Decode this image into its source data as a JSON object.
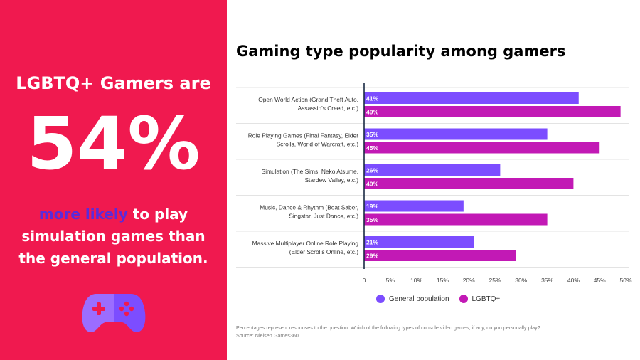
{
  "left": {
    "headline": "LGBTQ+ Gamers are",
    "stat": "54%",
    "highlight": "more likely",
    "line1_rest": " to play",
    "line2": "simulation games than",
    "line3": "the general population.",
    "icon": "game-controller-icon"
  },
  "colors": {
    "panel": "#f0194f",
    "general": "#7c4dff",
    "lgbtq": "#c219b5"
  },
  "chart_data": {
    "type": "bar",
    "orientation": "horizontal",
    "title": "Gaming type popularity among gamers",
    "categories": [
      [
        "Open World Action (Grand Theft Auto,",
        "Assassin's Creed, etc.)"
      ],
      [
        "Role Playing Games (Final Fantasy, Elder",
        "Scrolls, World of Warcraft, etc.)"
      ],
      [
        "Simulation (The Sims, Neko Atsume,",
        "Stardew Valley, etc.)"
      ],
      [
        "Music, Dance & Rhythm (Beat Saber,",
        "Singstar, Just Dance, etc.)"
      ],
      [
        "Massive Multiplayer Online Role Playing",
        "(Elder Scrolls Online, etc.)"
      ]
    ],
    "series": [
      {
        "name": "General population",
        "values": [
          41,
          35,
          26,
          19,
          21
        ],
        "labels": [
          "41%",
          "35%",
          "26%",
          "19%",
          "21%"
        ]
      },
      {
        "name": "LGBTQ+",
        "values": [
          49,
          45,
          40,
          35,
          29
        ],
        "labels": [
          "49%",
          "45%",
          "40%",
          "35%",
          "29%"
        ]
      }
    ],
    "xlim": [
      0,
      50
    ],
    "xticks": [
      0,
      5,
      10,
      15,
      20,
      25,
      30,
      35,
      40,
      45,
      50
    ],
    "xtick_labels": [
      "0",
      "5%",
      "10%",
      "15%",
      "20%",
      "25%",
      "30%",
      "35%",
      "40%",
      "45%",
      "50%"
    ],
    "grid": true,
    "legend": "bottom"
  },
  "footnote": {
    "line1": "Percentages represent responses to the question: Which of the following types of console video games, if any, do you personally play?",
    "line2": "Source: Nielsen Games360"
  }
}
